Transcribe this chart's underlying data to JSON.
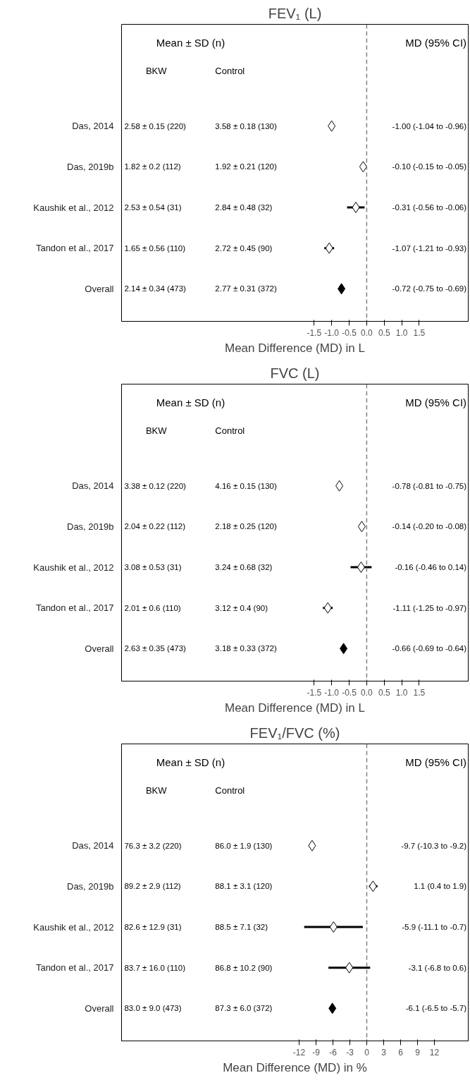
{
  "chart_data": [
    {
      "type": "scatter",
      "title": "FEV₁ (L)",
      "xlabel": "Mean Difference (MD) in L",
      "orientation": "horizontal",
      "marker": "diamond",
      "categories": [
        "Das, 2014",
        "Das, 2019b",
        "Kaushik et al., 2012",
        "Tandon et al., 2017",
        "Overall"
      ],
      "values": [
        -1.0,
        -0.1,
        -0.31,
        -1.07,
        -0.72
      ],
      "errors": [
        [
          -1.04,
          -0.96
        ],
        [
          -0.15,
          -0.05
        ],
        [
          -0.56,
          -0.06
        ],
        [
          -1.21,
          -0.93
        ],
        [
          -0.75,
          -0.69
        ]
      ],
      "colors": [
        "#ffffff",
        "#ffffff",
        "#ffffff",
        "#ffffff",
        "#000000"
      ],
      "xlim": [
        -7,
        2.9
      ],
      "xticks": [
        -1.5,
        {
          "value": -1,
          "label": "-1.0"
        },
        -0.5,
        {
          "value": 0,
          "label": "0.0"
        },
        0.5,
        {
          "value": 1,
          "label": "1.0"
        },
        1.5
      ],
      "ref_lines": [
        {
          "axis": "x",
          "value": 0,
          "color": "#808080",
          "line_style": "dashed"
        }
      ],
      "annotations": [
        "Mean ± SD (n)",
        "MD (95% CI)",
        "BKW",
        "Control",
        "2.58 ± 0.15 (220)",
        "3.58 ± 0.18 (130)",
        "-1.00 (-1.04 to -0.96)",
        "1.82 ± 0.2 (112)",
        "1.92 ± 0.21 (120)",
        "-0.10 (-0.15 to -0.05)",
        "2.53 ± 0.54 (31)",
        "2.84 ± 0.48 (32)",
        "-0.31 (-0.56 to -0.06)",
        "1.65 ± 0.56 (110)",
        "2.72 ± 0.45 (90)",
        "-1.07 (-1.21 to -0.93)",
        "2.14 ± 0.34 (473)",
        "2.77 ± 0.31 (372)",
        "-0.72 (-0.75 to -0.69)"
      ]
    },
    {
      "type": "scatter",
      "title": "FVC (L)",
      "xlabel": "Mean Difference (MD) in L",
      "orientation": "horizontal",
      "marker": "diamond",
      "categories": [
        "Das, 2014",
        "Das, 2019b",
        "Kaushik et al., 2012",
        "Tandon et al., 2017",
        "Overall"
      ],
      "values": [
        -0.78,
        -0.14,
        -0.16,
        -1.11,
        -0.66
      ],
      "errors": [
        [
          -0.81,
          -0.75
        ],
        [
          -0.2,
          -0.08
        ],
        [
          -0.46,
          0.14
        ],
        [
          -1.25,
          -0.97
        ],
        [
          -0.69,
          -0.64
        ]
      ],
      "colors": [
        "#ffffff",
        "#ffffff",
        "#ffffff",
        "#ffffff",
        "#000000"
      ],
      "xlim": [
        -7,
        2.9
      ],
      "xticks": [
        -1.5,
        {
          "value": -1,
          "label": "-1.0"
        },
        -0.5,
        {
          "value": 0,
          "label": "0.0"
        },
        0.5,
        {
          "value": 1,
          "label": "1.0"
        },
        1.5
      ],
      "ref_lines": [
        {
          "axis": "x",
          "value": 0,
          "color": "#808080",
          "line_style": "dashed"
        }
      ],
      "annotations": [
        "Mean ± SD (n)",
        "MD (95% CI)",
        "BKW",
        "Control",
        "3.38 ± 0.12 (220)",
        "4.16 ± 0.15 (130)",
        "-0.78 (-0.81 to -0.75)",
        "2.04 ± 0.22 (112)",
        "2.18 ± 0.25 (120)",
        "-0.14 (-0.20 to -0.08)",
        "3.08 ± 0.53 (31)",
        "3.24 ± 0.68 (32)",
        "-0.16 (-0.46 to 0.14)",
        "2.01 ± 0.6 (110)",
        "3.12 ± 0.4 (90)",
        "-1.11 (-1.25 to -0.97)",
        "2.63 ± 0.35 (473)",
        "3.18 ± 0.33 (372)",
        "-0.66 (-0.69 to -0.64)"
      ]
    },
    {
      "type": "scatter",
      "title": "FEV₁/FVC (%)",
      "xlabel": "Mean Difference (MD) in %",
      "orientation": "horizontal",
      "marker": "diamond",
      "categories": [
        "Das, 2014",
        "Das, 2019b",
        "Kaushik et al., 2012",
        "Tandon et al., 2017",
        "Overall"
      ],
      "values": [
        -9.7,
        1.1,
        -5.9,
        -3.1,
        -6.1
      ],
      "errors": [
        [
          -10.3,
          -9.2
        ],
        [
          0.4,
          1.9
        ],
        [
          -11.1,
          -0.7
        ],
        [
          -6.8,
          0.6
        ],
        [
          -6.5,
          -5.7
        ]
      ],
      "colors": [
        "#ffffff",
        "#ffffff",
        "#ffffff",
        "#ffffff",
        "#000000"
      ],
      "xlim": [
        -43.5,
        18
      ],
      "xticks": [
        -12,
        -9,
        -6,
        -3,
        0,
        3,
        6,
        9,
        12
      ],
      "ref_lines": [
        {
          "axis": "x",
          "value": 0,
          "color": "#808080",
          "line_style": "dashed"
        }
      ],
      "annotations": [
        "Mean ± SD (n)",
        "MD (95% CI)",
        "BKW",
        "Control",
        "76.3 ± 3.2 (220)",
        "86.0 ± 1.9 (130)",
        "-9.7 (-10.3 to -9.2)",
        "89.2 ± 2.9 (112)",
        "88.1 ± 3.1 (120)",
        "1.1 (0.4 to 1.9)",
        "82.6 ± 12.9 (31)",
        "88.5 ± 7.1 (32)",
        "-5.9 (-11.1 to -0.7)",
        "83.7 ± 16.0 (110)",
        "86.8 ± 10.2 (90)",
        "-3.1 (-6.8 to 0.6)",
        "83.0 ± 9.0 (473)",
        "87.3 ± 6.0 (372)",
        "-6.1 (-6.5 to -5.7)"
      ]
    }
  ]
}
